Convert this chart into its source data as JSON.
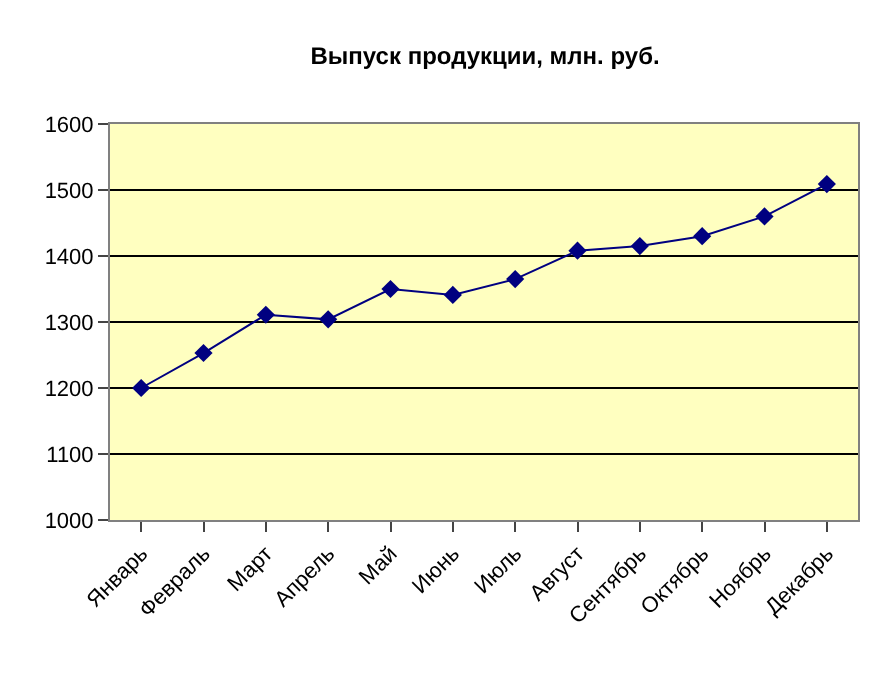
{
  "chart_data": {
    "type": "line",
    "title": "Выпуск продукции, млн. руб.",
    "categories": [
      "Январь",
      "Февраль",
      "Март",
      "Апрель",
      "Май",
      "Июнь",
      "Июль",
      "Август",
      "Сентябрь",
      "Октябрь",
      "Ноябрь",
      "Декабрь"
    ],
    "series": [
      {
        "color": "#000080",
        "values": [
          1200,
          1253,
          1311,
          1304,
          1350,
          1341,
          1365,
          1408,
          1415,
          1430,
          1460,
          1509
        ]
      }
    ],
    "ylim": [
      1000,
      1600
    ],
    "yticks": [
      1000,
      1100,
      1200,
      1300,
      1400,
      1500,
      1600
    ],
    "grid": "y",
    "marker": "diamond",
    "line_style": "solid",
    "legend": false
  }
}
